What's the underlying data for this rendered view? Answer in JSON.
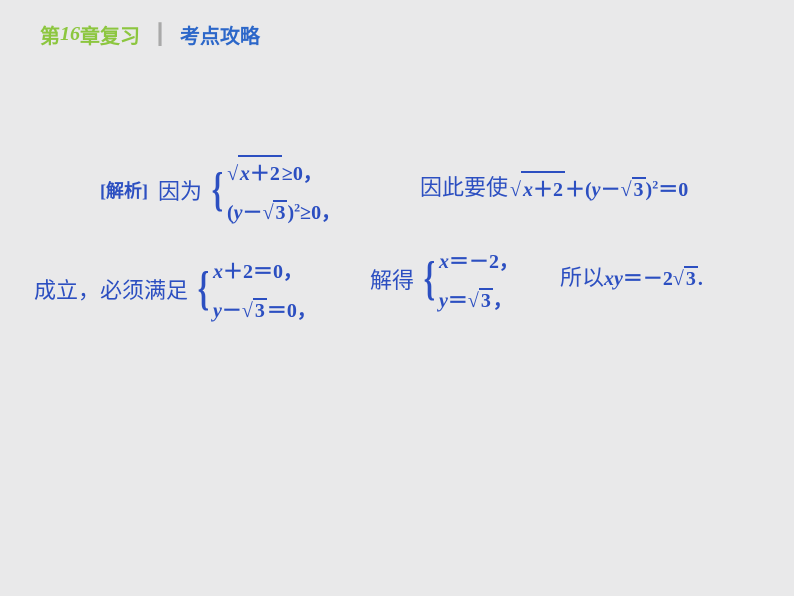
{
  "header": {
    "prefix": "第",
    "chapter_num": "16",
    "suffix": "章复习",
    "divider": "┃",
    "strategy": "考点攻略"
  },
  "colors": {
    "background": "#e9e9ea",
    "green": "#8cc63f",
    "gray_divider": "#a9a9a9",
    "blue": "#2c4fc1"
  },
  "analysis_label": "[解析]",
  "because": "因为",
  "sys1_row1": {
    "sqrt_inner": "x＋2",
    "op": "≥",
    "rhs": "0",
    "end": "，"
  },
  "sys1_row2": {
    "lparen": "(",
    "y": "y",
    "minus": "－",
    "sqrt_inner": "3",
    "rparen": ")",
    "sup": "2",
    "op": "≥",
    "rhs": "0",
    "end": "，"
  },
  "therefore_prefix": "因此要使",
  "expr_sqrt_inner": "x＋2",
  "expr_plus": "＋",
  "expr_lparen": "(",
  "expr_y": "y",
  "expr_minus": "－",
  "expr_sqrt3": "3",
  "expr_rparen": ")",
  "expr_sup": "2",
  "expr_eq": "＝",
  "expr_zero": "0",
  "chengli": "成立，必须满足",
  "sys2_row1": {
    "lhs": "x＋2＝0",
    "end": "，"
  },
  "sys2_row2": {
    "y": "y",
    "minus": "－",
    "sqrt_inner": "3",
    "eq": "＝",
    "rhs": "0",
    "end": "，"
  },
  "jiede": "解得",
  "sys3_row1": {
    "lhs": "x＝－2",
    "end": "，"
  },
  "sys3_row2": {
    "y": "y",
    "eq": "＝",
    "sqrt_inner": "3",
    "end": "，"
  },
  "suoyi": "所以 ",
  "xy": "xy",
  "eq2": "＝",
  "neg2": "－2",
  "sqrt3_final": "3",
  "period": "."
}
